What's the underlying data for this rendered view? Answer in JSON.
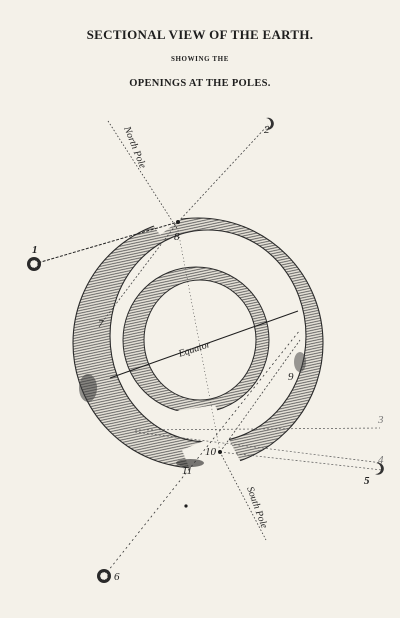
{
  "header": {
    "title": "SECTIONAL VIEW OF THE EARTH.",
    "subtitle": "SHOWING THE",
    "caption": "OPENINGS AT THE POLES."
  },
  "diagram": {
    "axis_labels": {
      "north": "North Pole",
      "south": "South Pole",
      "equator": "Equator"
    },
    "markers": [
      "1",
      "2",
      "3",
      "4",
      "5",
      "6",
      "7",
      "8",
      "9",
      "10",
      "11"
    ],
    "colors": {
      "ink": "#1e1e1e",
      "paper": "#f4f1e9",
      "hatch": "#6a6a6a"
    }
  }
}
